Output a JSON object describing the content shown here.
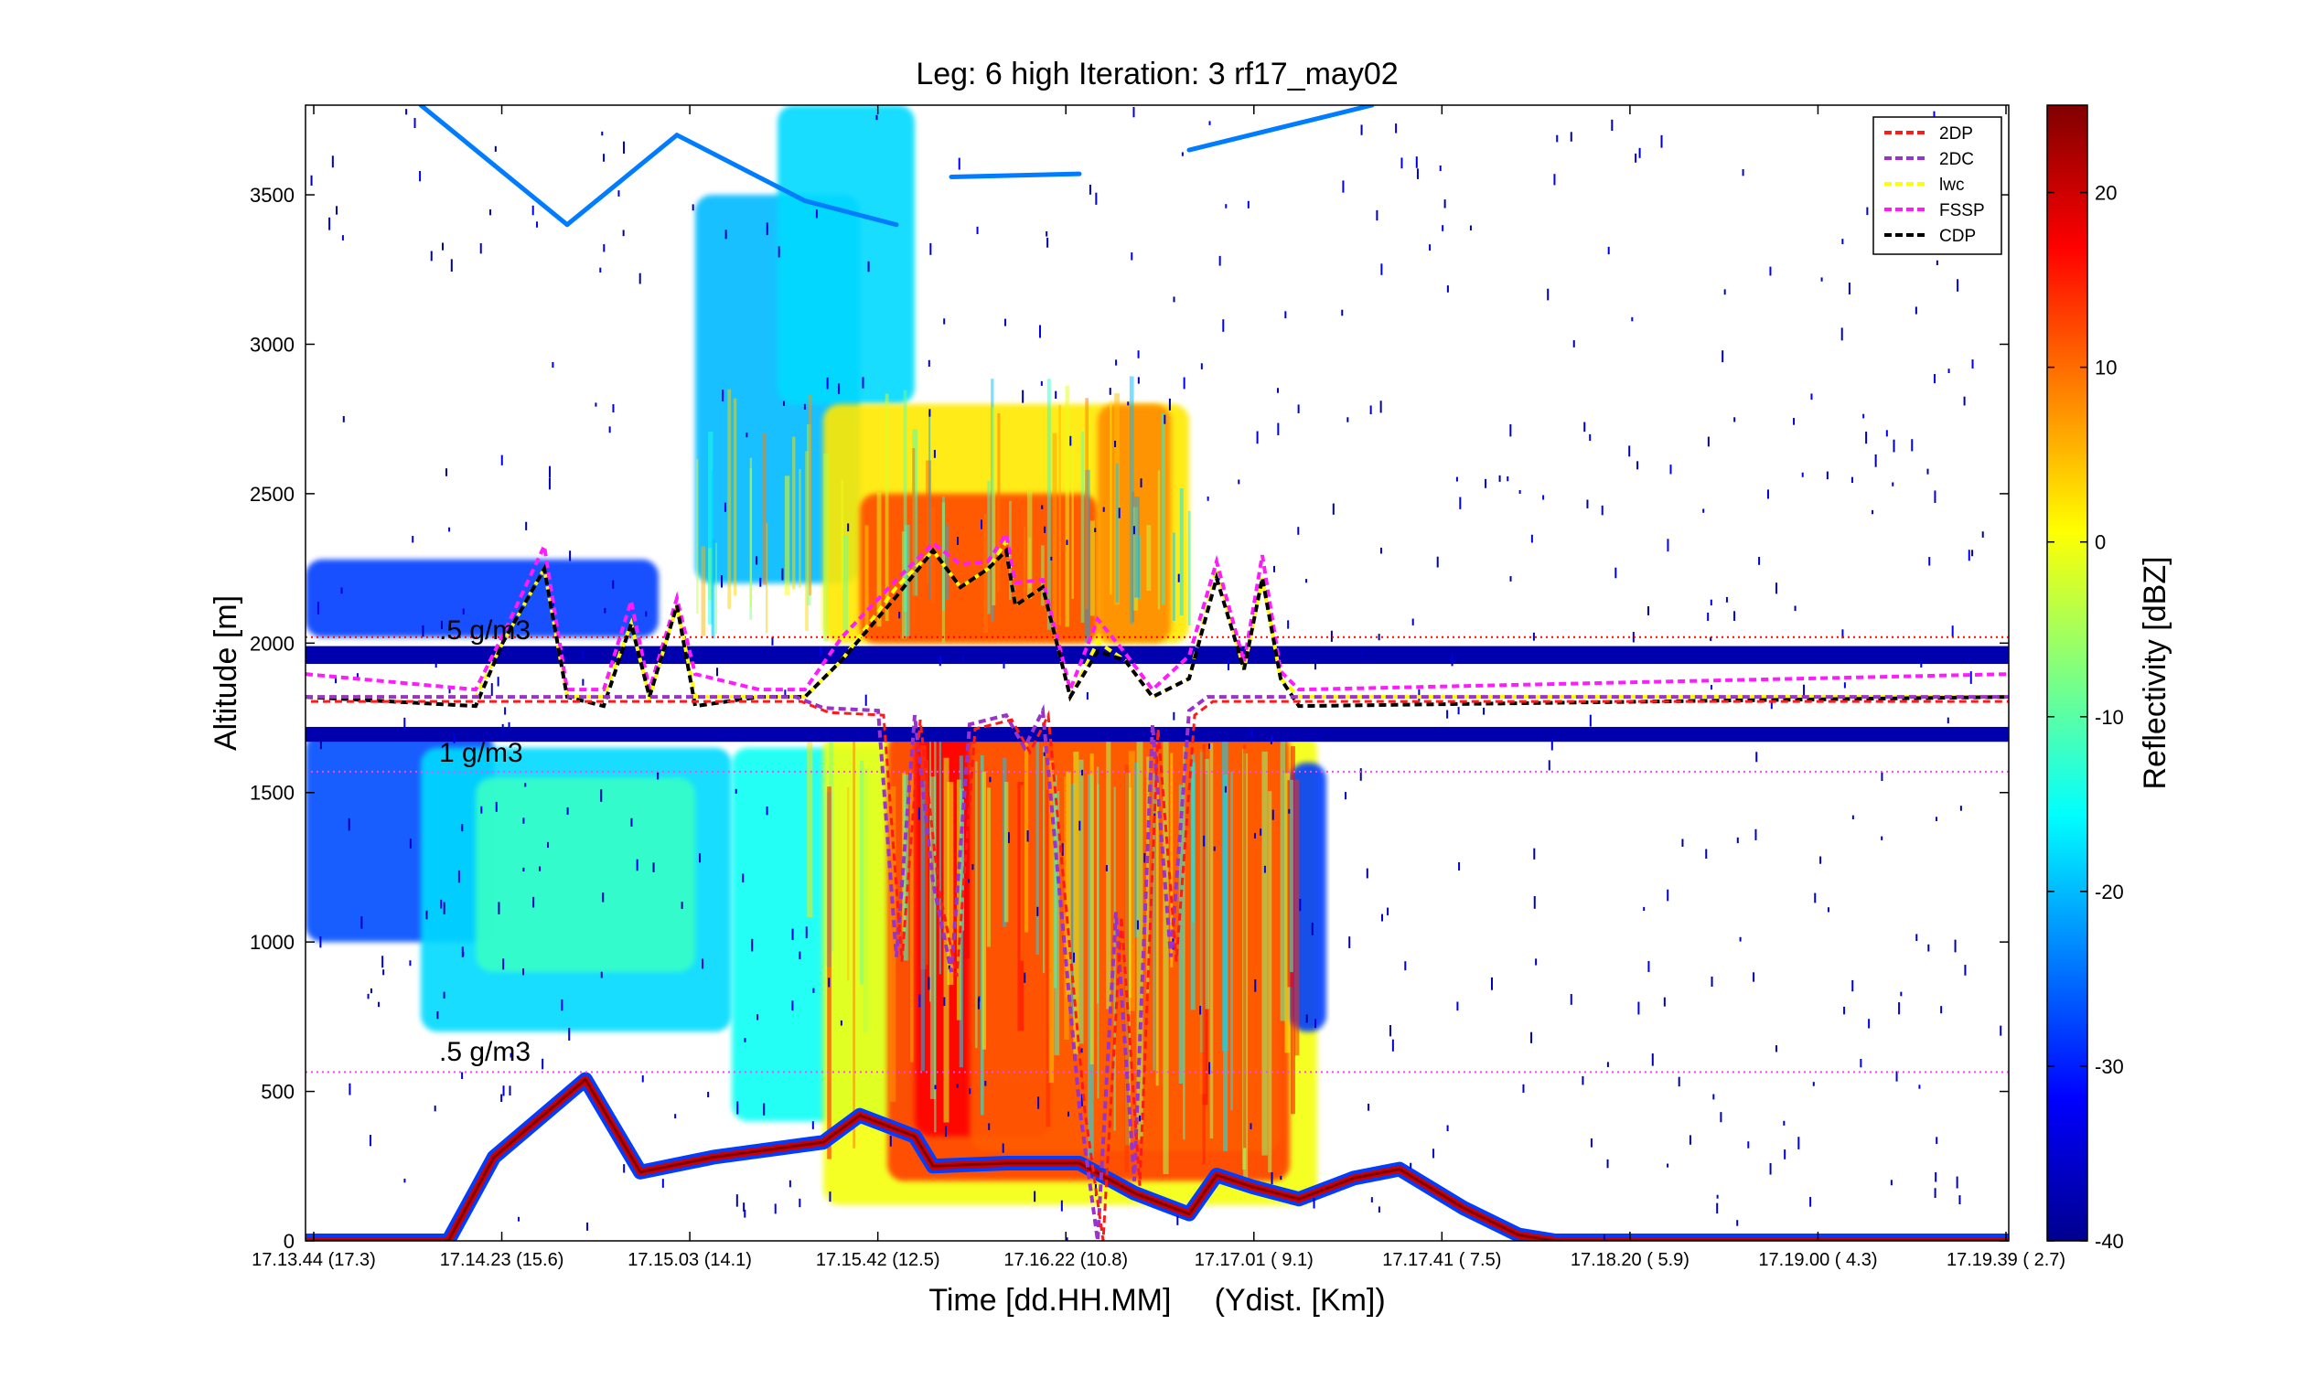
{
  "chart_data": {
    "type": "heatmap",
    "title": "Leg: 6 high Iteration: 3  rf17_may02",
    "xlabel": "Time [dd.HH.MM]     (Ydist. [Km])",
    "ylabel": "Altitude [m]",
    "colorbar_label": "Reflectivity [dBZ]",
    "ylim": [
      0,
      3800
    ],
    "clim": [
      -40,
      25
    ],
    "x_tick_labels": [
      "17.13.44    (17.3)",
      "17.14.23    (15.6)",
      "17.15.03    (14.1)",
      "17.15.42    (12.5)",
      "17.16.22    (10.8)",
      "17.17.01    ( 9.1)",
      "17.17.41    ( 7.5)",
      "17.18.20    ( 5.9)",
      "17.19.00    ( 4.3)",
      "17.19.39    ( 2.7)"
    ],
    "y_ticks": [
      0,
      500,
      1000,
      1500,
      2000,
      2500,
      3000,
      3500
    ],
    "colorbar_ticks": [
      -40,
      -30,
      -20,
      -10,
      0,
      10,
      20
    ],
    "colormap": "jet",
    "legend": {
      "placement": "top-right",
      "entries": [
        {
          "name": "2DP",
          "color": "#ff1a1a"
        },
        {
          "name": "2DC",
          "color": "#9933cc"
        },
        {
          "name": "lwc",
          "color": "#ffff00"
        },
        {
          "name": "FSSP",
          "color": "#ff1aff"
        },
        {
          "name": "CDP",
          "color": "#000000"
        }
      ]
    },
    "annotations": [
      {
        "text": ".5 g/m3",
        "y": 2050
      },
      {
        "text": "1 g/m3",
        "y": 1640
      },
      {
        "text": ".5 g/m3",
        "y": 640
      }
    ],
    "reference_lines": [
      {
        "y": 2020,
        "color": "#ff0000",
        "style": "dotted"
      },
      {
        "y": 1570,
        "color": "#ff44ff",
        "style": "dotted"
      },
      {
        "y": 565,
        "color": "#ff44ff",
        "style": "dotted"
      }
    ],
    "flight_altitude": 1820,
    "blanked_band": [
      1720,
      1930
    ]
  }
}
